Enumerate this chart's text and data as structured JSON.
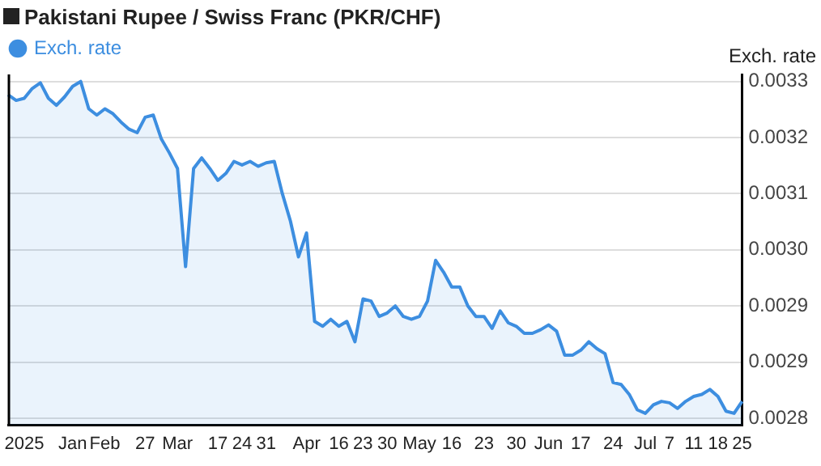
{
  "chart_data": {
    "type": "area",
    "title": "Pakistani Rupee / Swiss Franc (PKR/CHF)",
    "ylabel": "Exch. rate",
    "categories": [
      null,
      null,
      "2025",
      null,
      null,
      null,
      null,
      null,
      "Jan",
      null,
      null,
      null,
      "Feb",
      null,
      null,
      null,
      null,
      "27",
      null,
      null,
      null,
      "Mar",
      null,
      null,
      null,
      null,
      "17",
      null,
      null,
      "24",
      null,
      null,
      "31",
      null,
      null,
      null,
      null,
      "Apr",
      null,
      null,
      null,
      "16",
      null,
      null,
      "23",
      null,
      null,
      "30",
      null,
      null,
      null,
      "May",
      null,
      null,
      null,
      "16",
      null,
      null,
      null,
      "23",
      null,
      null,
      null,
      "30",
      null,
      null,
      null,
      "Jun",
      null,
      null,
      null,
      "17",
      null,
      null,
      null,
      "24",
      null,
      null,
      null,
      "Jul",
      null,
      null,
      "7",
      null,
      null,
      "11",
      null,
      null,
      "18",
      null,
      null,
      "25"
    ],
    "series": [
      {
        "name": "Exch. rate",
        "color": "#3d8ee0",
        "values": [
          0.003241,
          0.003233,
          0.003236,
          0.00325,
          0.003258,
          0.003236,
          0.003226,
          0.003238,
          0.003253,
          0.00326,
          0.003221,
          0.003212,
          0.003221,
          0.003214,
          0.003202,
          0.003192,
          0.003187,
          0.003209,
          0.003212,
          0.003178,
          0.003158,
          0.003136,
          0.002996,
          0.003136,
          0.003151,
          0.003136,
          0.003119,
          0.003129,
          0.003146,
          0.003141,
          0.003146,
          0.003139,
          0.003144,
          0.003146,
          0.0031,
          0.003061,
          0.00301,
          0.003044,
          0.002918,
          0.002911,
          0.002921,
          0.002911,
          0.002918,
          0.002889,
          0.00295,
          0.002947,
          0.002925,
          0.00293,
          0.00294,
          0.002925,
          0.002921,
          0.002925,
          0.002947,
          0.003005,
          0.002988,
          0.002967,
          0.002967,
          0.00294,
          0.002925,
          0.002925,
          0.002908,
          0.002933,
          0.002916,
          0.002911,
          0.002901,
          0.002901,
          0.002906,
          0.002913,
          0.002904,
          0.00287,
          0.00287,
          0.002877,
          0.002889,
          0.002879,
          0.002872,
          0.002831,
          0.002828,
          0.002814,
          0.002792,
          0.002787,
          0.002799,
          0.002804,
          0.002802,
          0.002794,
          0.002804,
          0.002811,
          0.002814,
          0.002821,
          0.002811,
          0.00279,
          0.002787,
          0.002804
        ]
      }
    ],
    "ylim": [
      0.00277,
      0.00327
    ],
    "yticks": [
      {
        "value": 0.00278,
        "label": "0.0028"
      },
      {
        "value": 0.00286,
        "label": "0.0029"
      },
      {
        "value": 0.00294,
        "label": "0.0029"
      },
      {
        "value": 0.00302,
        "label": "0.0030"
      },
      {
        "value": 0.0031,
        "label": "0.0031"
      },
      {
        "value": 0.00318,
        "label": "0.0032"
      },
      {
        "value": 0.00326,
        "label": "0.0033"
      }
    ],
    "grid": "y",
    "legend": "top left"
  }
}
